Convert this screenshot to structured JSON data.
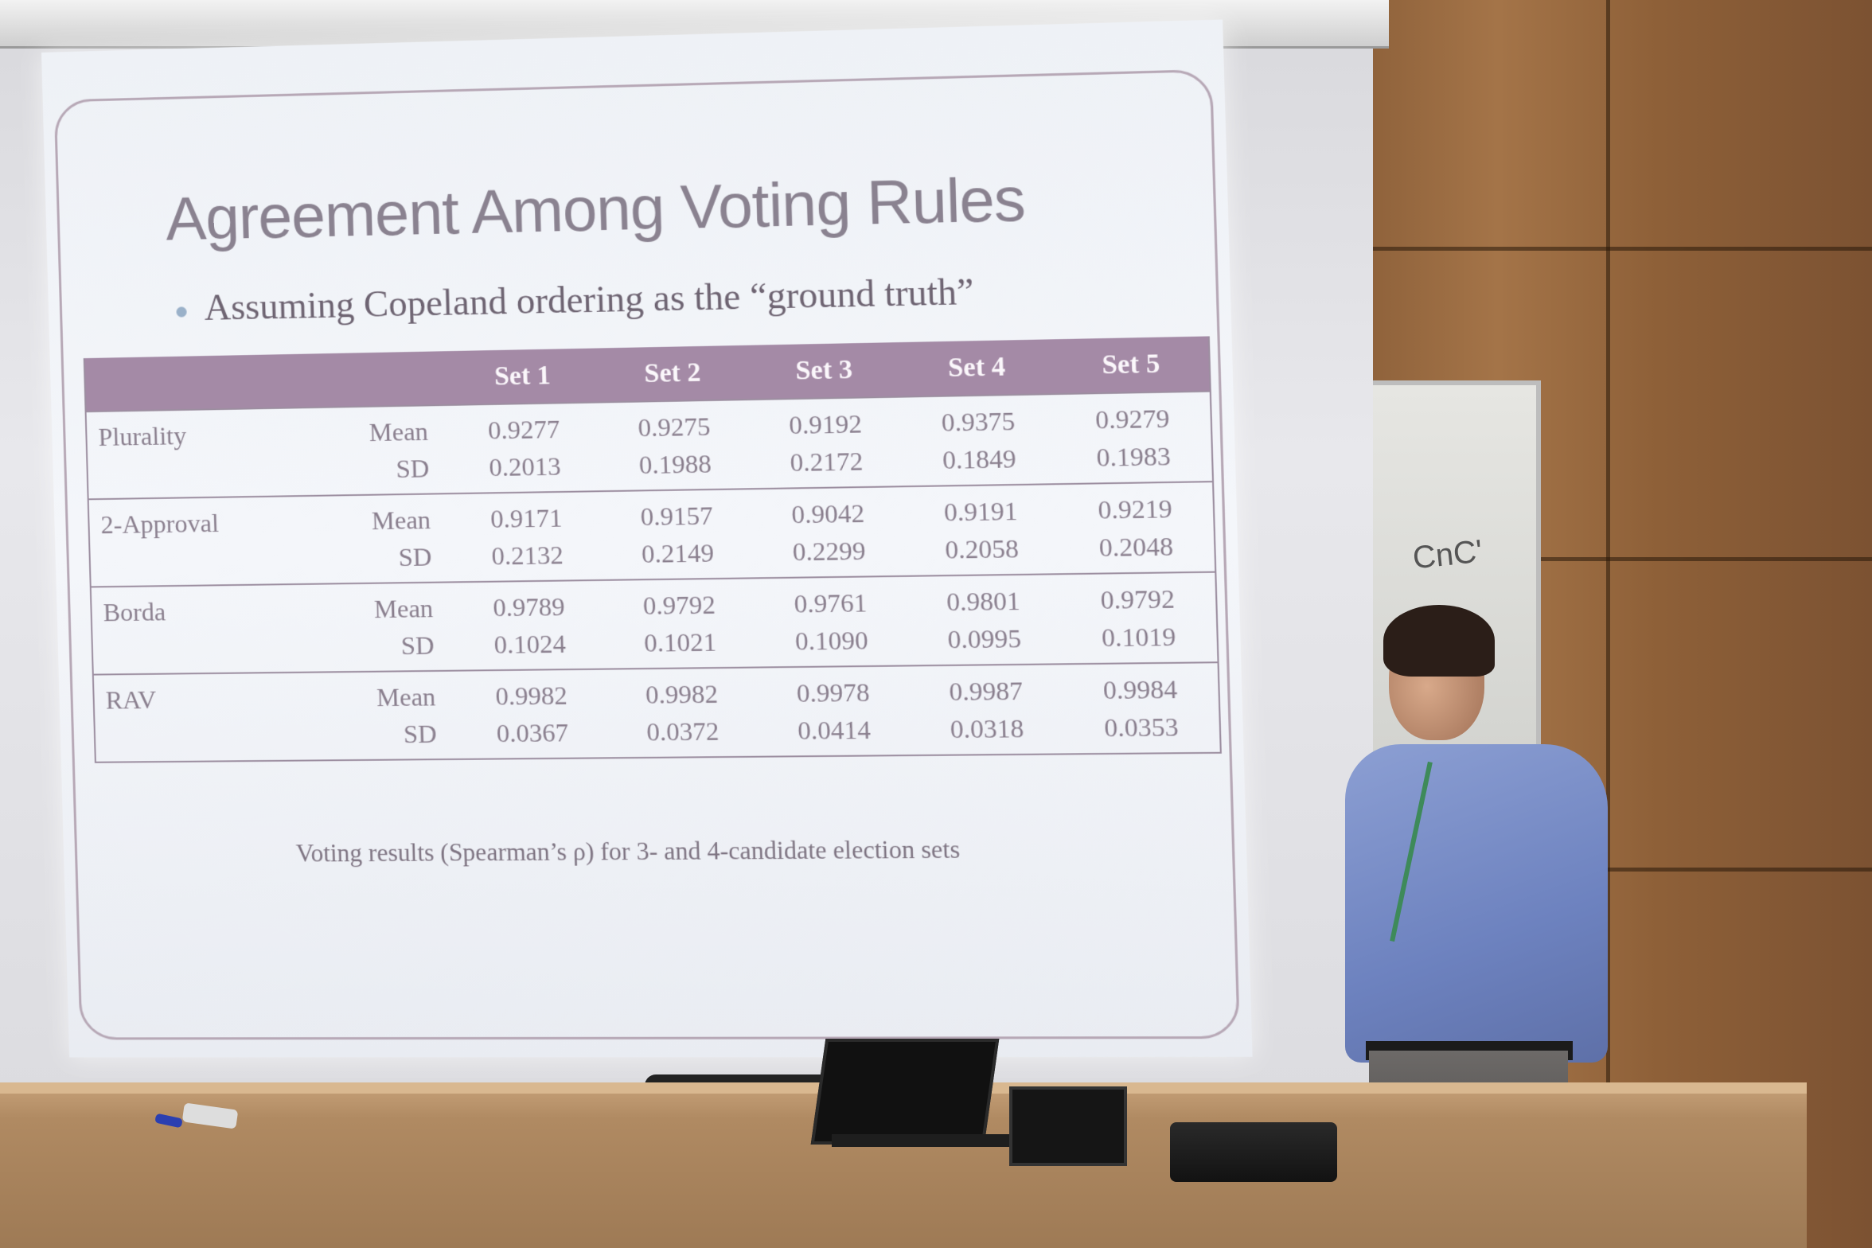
{
  "slide": {
    "title": "Agreement Among Voting Rules",
    "bullet": "Assuming Copeland ordering as the “ground truth”",
    "caption": "Voting results (Spearman’s ρ) for 3- and 4-candidate election sets",
    "table": {
      "headers": [
        "Set 1",
        "Set 2",
        "Set 3",
        "Set 4",
        "Set 5"
      ],
      "rows": [
        {
          "rule": "Plurality",
          "mean_label": "Mean",
          "sd_label": "SD",
          "mean": [
            "0.9277",
            "0.9275",
            "0.9192",
            "0.9375",
            "0.9279"
          ],
          "sd": [
            "0.2013",
            "0.1988",
            "0.2172",
            "0.1849",
            "0.1983"
          ]
        },
        {
          "rule": "2-Approval",
          "mean_label": "Mean",
          "sd_label": "SD",
          "mean": [
            "0.9171",
            "0.9157",
            "0.9042",
            "0.9191",
            "0.9219"
          ],
          "sd": [
            "0.2132",
            "0.2149",
            "0.2299",
            "0.2058",
            "0.2048"
          ]
        },
        {
          "rule": "Borda",
          "mean_label": "Mean",
          "sd_label": "SD",
          "mean": [
            "0.9789",
            "0.9792",
            "0.9761",
            "0.9801",
            "0.9792"
          ],
          "sd": [
            "0.1024",
            "0.1021",
            "0.1090",
            "0.0995",
            "0.1019"
          ]
        },
        {
          "rule": "RAV",
          "mean_label": "Mean",
          "sd_label": "SD",
          "mean": [
            "0.9982",
            "0.9982",
            "0.9978",
            "0.9987",
            "0.9984"
          ],
          "sd": [
            "0.0367",
            "0.0372",
            "0.0414",
            "0.0318",
            "0.0353"
          ]
        }
      ]
    }
  },
  "whiteboard": {
    "scribble": "CnC'"
  },
  "colors": {
    "header_bg": "#a48aa6",
    "title_text": "#8a8290",
    "bullet_dot": "#9ab1c9"
  }
}
